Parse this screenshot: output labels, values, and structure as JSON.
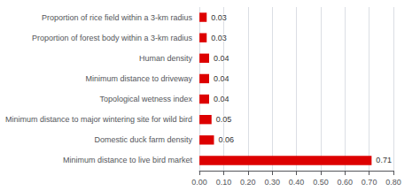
{
  "chart_data": {
    "type": "bar",
    "orientation": "horizontal",
    "categories": [
      "Minimum distance to live bird market",
      "Domestic duck farm density",
      "Minimum distance to major wintering site for wild bird",
      "Topological wetness index",
      "Minimum distance to driveway",
      "Human density",
      "Proportion of forest body within a 3-km radius",
      "Proportion of rice field within a 3-km radius"
    ],
    "values": [
      0.71,
      0.06,
      0.05,
      0.04,
      0.04,
      0.04,
      0.03,
      0.03
    ],
    "color": "#dd0000",
    "data_labels": true,
    "xlim": [
      0,
      0.8
    ],
    "xticks": [
      {
        "value": 0.0,
        "label": "0.00"
      },
      {
        "value": 0.1,
        "label": "0.10"
      },
      {
        "value": 0.2,
        "label": "0.20"
      },
      {
        "value": 0.3,
        "label": "0.30"
      },
      {
        "value": 0.4,
        "label": "0.40"
      },
      {
        "value": 0.5,
        "label": "0.50"
      },
      {
        "value": 0.6,
        "label": "0.60"
      },
      {
        "value": 0.7,
        "label": "0.70"
      },
      {
        "value": 0.8,
        "label": "0.80"
      }
    ],
    "grid": true
  }
}
